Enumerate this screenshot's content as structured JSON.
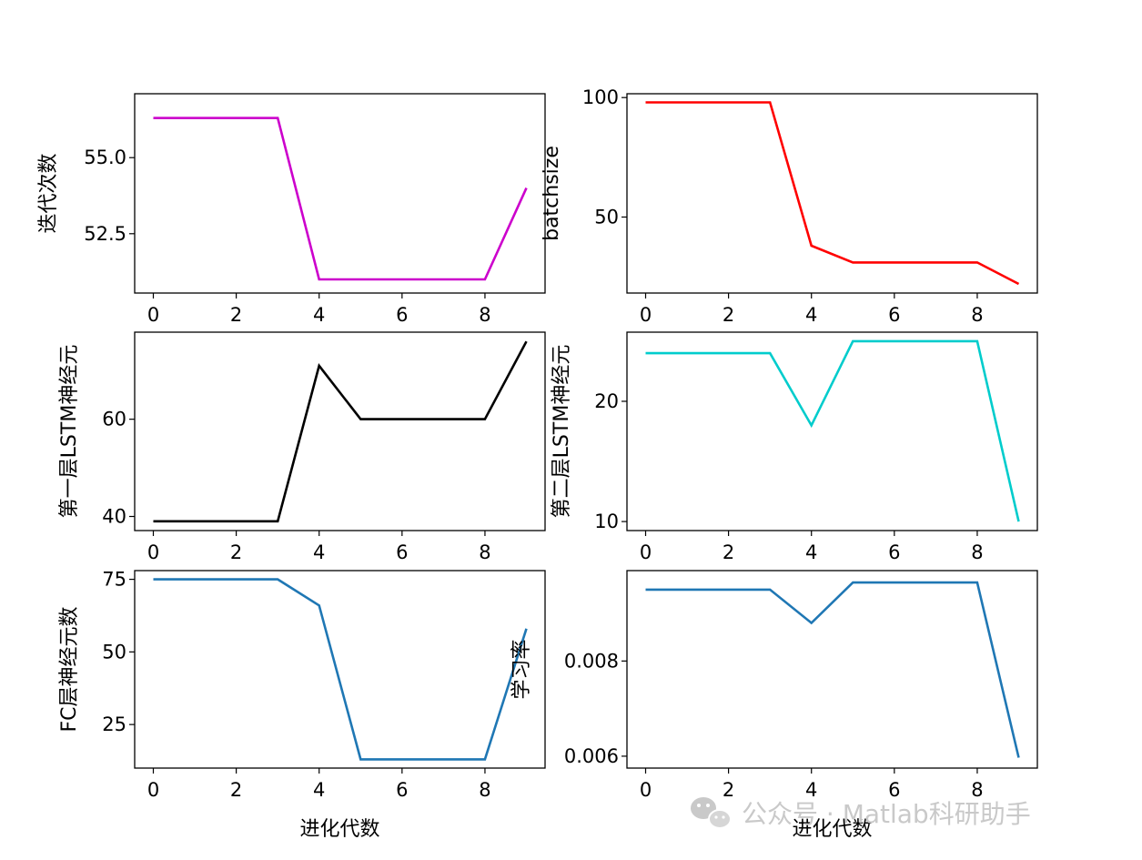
{
  "watermark": {
    "text": "公众号 · Matlab科研助手",
    "icon": "wechat-icon"
  },
  "chart_data": [
    {
      "type": "line",
      "ylabel": "迭代次数",
      "xlabel": "",
      "color": "#cc00cc",
      "x": [
        0,
        1,
        2,
        3,
        4,
        5,
        6,
        7,
        8,
        9
      ],
      "values": [
        56.3,
        56.3,
        56.3,
        56.3,
        51.0,
        51.0,
        51.0,
        51.0,
        51.0,
        54.0
      ],
      "xlim": [
        -0.45,
        9.45
      ],
      "ylim": [
        50.55,
        57.1
      ],
      "xticks": [
        0,
        2,
        4,
        6,
        8
      ],
      "yticks": [
        52.5,
        55.0
      ],
      "yticklabels": [
        "52.5",
        "55.0"
      ]
    },
    {
      "type": "line",
      "ylabel": "batchsize",
      "xlabel": "",
      "color": "#ff0000",
      "x": [
        0,
        1,
        2,
        3,
        4,
        5,
        6,
        7,
        8,
        9
      ],
      "values": [
        98,
        98,
        98,
        98,
        38,
        31,
        31,
        31,
        31,
        22
      ],
      "xlim": [
        -0.45,
        9.45
      ],
      "ylim": [
        18.2,
        101.6
      ],
      "xticks": [
        0,
        2,
        4,
        6,
        8
      ],
      "yticks": [
        50,
        100
      ],
      "yticklabels": [
        "50",
        "100"
      ]
    },
    {
      "type": "line",
      "ylabel": "第一层LSTM神经元",
      "xlabel": "",
      "color": "#000000",
      "x": [
        0,
        1,
        2,
        3,
        4,
        5,
        6,
        7,
        8,
        9
      ],
      "values": [
        39,
        39,
        39,
        39,
        71,
        60,
        60,
        60,
        60,
        76
      ],
      "xlim": [
        -0.45,
        9.45
      ],
      "ylim": [
        37.1,
        77.9
      ],
      "xticks": [
        0,
        2,
        4,
        6,
        8
      ],
      "yticks": [
        40,
        60
      ],
      "yticklabels": [
        "40",
        "60"
      ]
    },
    {
      "type": "line",
      "ylabel": "第二层LSTM神经元",
      "xlabel": "",
      "color": "#00cccc",
      "x": [
        0,
        1,
        2,
        3,
        4,
        5,
        6,
        7,
        8,
        9
      ],
      "values": [
        24,
        24,
        24,
        24,
        18,
        25,
        25,
        25,
        25,
        10
      ],
      "xlim": [
        -0.45,
        9.45
      ],
      "ylim": [
        9.25,
        25.75
      ],
      "xticks": [
        0,
        2,
        4,
        6,
        8
      ],
      "yticks": [
        10,
        20
      ],
      "yticklabels": [
        "10",
        "20"
      ]
    },
    {
      "type": "line",
      "ylabel": "FC层神经元数",
      "xlabel": "进化代数",
      "color": "#1f77b4",
      "x": [
        0,
        1,
        2,
        3,
        4,
        5,
        6,
        7,
        8,
        9
      ],
      "values": [
        75,
        75,
        75,
        75,
        66,
        13,
        13,
        13,
        13,
        58
      ],
      "xlim": [
        -0.45,
        9.45
      ],
      "ylim": [
        10.0,
        78.0
      ],
      "xticks": [
        0,
        2,
        4,
        6,
        8
      ],
      "yticks": [
        25,
        50,
        75
      ],
      "yticklabels": [
        "25",
        "50",
        "75"
      ]
    },
    {
      "type": "line",
      "ylabel": "学习率",
      "xlabel": "进化代数",
      "color": "#1f77b4",
      "x": [
        0,
        1,
        2,
        3,
        4,
        5,
        6,
        7,
        8,
        9
      ],
      "values": [
        0.0095,
        0.0095,
        0.0095,
        0.0095,
        0.0088,
        0.00965,
        0.00965,
        0.00965,
        0.00965,
        0.00597
      ],
      "xlim": [
        -0.45,
        9.45
      ],
      "ylim": [
        0.00575,
        0.0099
      ],
      "xticks": [
        0,
        2,
        4,
        6,
        8
      ],
      "yticks": [
        0.006,
        0.008
      ],
      "yticklabels": [
        "0.006",
        "0.008"
      ]
    }
  ]
}
